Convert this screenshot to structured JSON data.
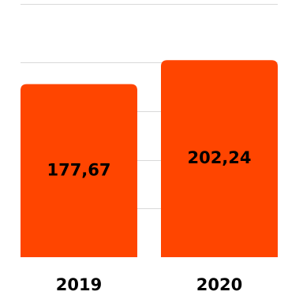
{
  "chart_data": {
    "type": "bar",
    "categories": [
      "2019",
      "2020"
    ],
    "values": [
      177.67,
      202.24
    ],
    "value_labels": [
      "177,67",
      "202,24"
    ],
    "title": "",
    "xlabel": "",
    "ylabel": "",
    "ylim": [
      0,
      260
    ],
    "y_ticks": [
      0,
      50,
      100,
      150,
      200,
      260
    ],
    "grid": true,
    "legend": "none",
    "colors": {
      "bar": "#FF4500",
      "grid": "#D9D9D9",
      "label": "#000000"
    }
  }
}
